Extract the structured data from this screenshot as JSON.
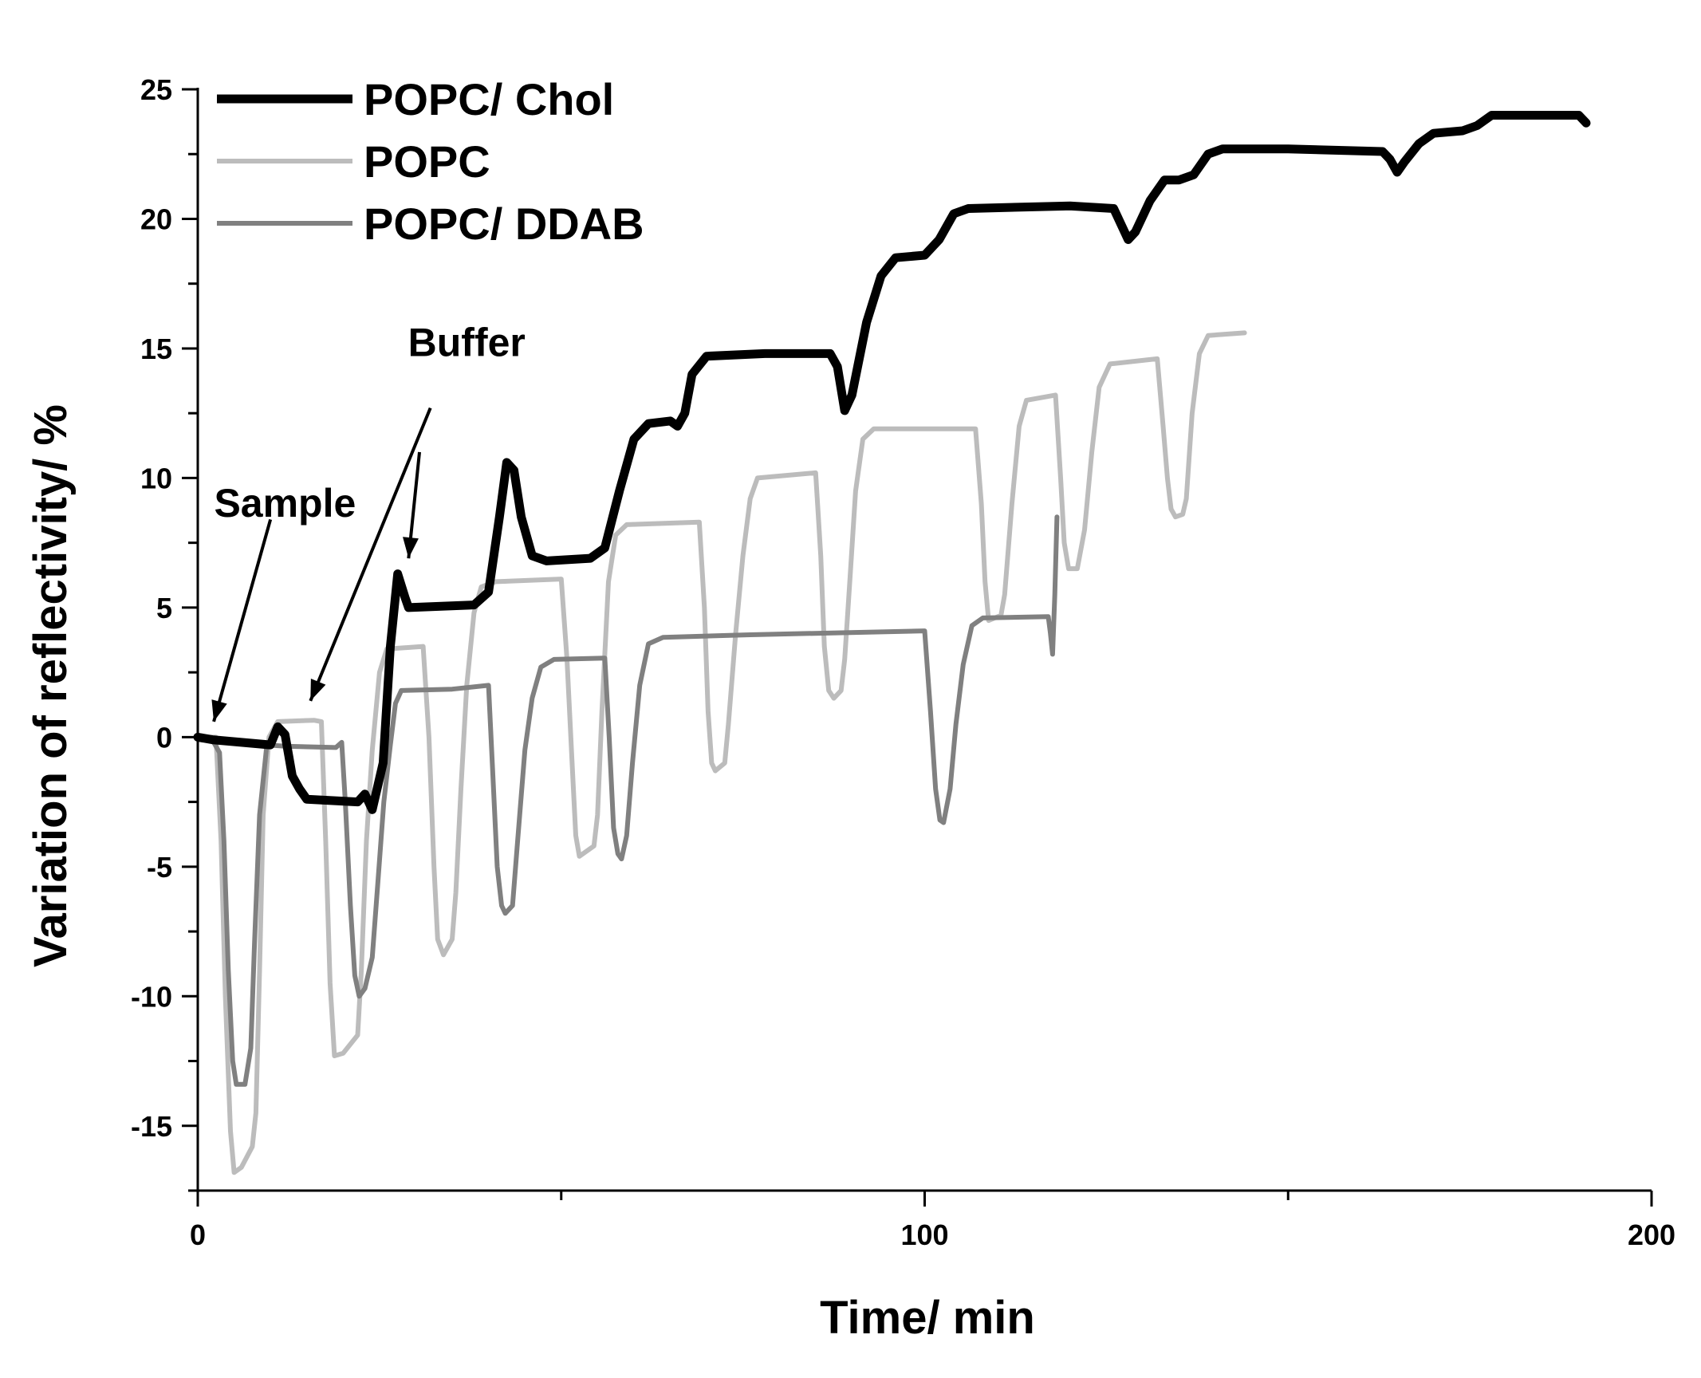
{
  "chart_data": {
    "type": "line",
    "title": "",
    "xlabel": "Time/ min",
    "ylabel": "Variation of reflectivity/ %",
    "xlim": [
      0,
      200
    ],
    "ylim": [
      -17.5,
      25
    ],
    "x_ticks": [
      0,
      100,
      200
    ],
    "x_tick_labels": [
      "0",
      "100",
      "200"
    ],
    "x_minor_step": 50,
    "y_ticks": [
      -15,
      -10,
      -5,
      0,
      5,
      10,
      15,
      20,
      25
    ],
    "y_tick_labels": [
      "-15",
      "-10",
      "-5",
      "0",
      "5",
      "10",
      "15",
      "20",
      "25"
    ],
    "y_minor_step": 2.5,
    "grid": false,
    "legend_position": "top-left",
    "series": [
      {
        "name": "POPC/ Chol",
        "color": "#000000",
        "weight": "thick",
        "points": [
          [
            0,
            0
          ],
          [
            2,
            -0.1
          ],
          [
            10,
            -0.3
          ],
          [
            11,
            0.4
          ],
          [
            12,
            0.1
          ],
          [
            13,
            -1.5
          ],
          [
            14,
            -2
          ],
          [
            15,
            -2.4
          ],
          [
            22,
            -2.5
          ],
          [
            23,
            -2.2
          ],
          [
            24,
            -2.8
          ],
          [
            25.5,
            -1
          ],
          [
            26.5,
            3.5
          ],
          [
            27.5,
            6.3
          ],
          [
            28.5,
            5.4
          ],
          [
            29,
            5
          ],
          [
            38,
            5.1
          ],
          [
            40,
            5.6
          ],
          [
            41.5,
            8.5
          ],
          [
            42.5,
            10.6
          ],
          [
            43.5,
            10.3
          ],
          [
            44.5,
            8.5
          ],
          [
            46,
            7
          ],
          [
            48,
            6.8
          ],
          [
            54,
            6.9
          ],
          [
            56,
            7.3
          ],
          [
            58,
            9.5
          ],
          [
            60,
            11.5
          ],
          [
            62,
            12.1
          ],
          [
            65,
            12.2
          ],
          [
            66,
            12
          ],
          [
            67,
            12.5
          ],
          [
            68,
            14
          ],
          [
            70,
            14.7
          ],
          [
            78,
            14.8
          ],
          [
            87,
            14.8
          ],
          [
            88,
            14.3
          ],
          [
            89,
            12.6
          ],
          [
            90,
            13.2
          ],
          [
            92,
            16
          ],
          [
            94,
            17.8
          ],
          [
            96,
            18.5
          ],
          [
            100,
            18.6
          ],
          [
            102,
            19.2
          ],
          [
            104,
            20.2
          ],
          [
            106,
            20.4
          ],
          [
            120,
            20.5
          ],
          [
            126,
            20.4
          ],
          [
            127,
            19.8
          ],
          [
            128,
            19.2
          ],
          [
            129,
            19.5
          ],
          [
            131,
            20.7
          ],
          [
            133,
            21.5
          ],
          [
            135,
            21.5
          ],
          [
            137,
            21.7
          ],
          [
            139,
            22.5
          ],
          [
            141,
            22.7
          ],
          [
            150,
            22.7
          ],
          [
            163,
            22.6
          ],
          [
            164,
            22.3
          ],
          [
            165,
            21.8
          ],
          [
            166,
            22.2
          ],
          [
            168,
            22.9
          ],
          [
            170,
            23.3
          ],
          [
            174,
            23.4
          ],
          [
            176,
            23.6
          ],
          [
            178,
            24
          ],
          [
            190,
            24
          ],
          [
            191,
            23.7
          ]
        ]
      },
      {
        "name": "POPC",
        "color": "#bcbcbc",
        "weight": "medium",
        "points": [
          [
            0,
            0
          ],
          [
            2.5,
            0
          ],
          [
            3.2,
            -4
          ],
          [
            3.8,
            -10
          ],
          [
            4.5,
            -15.2
          ],
          [
            5,
            -16.8
          ],
          [
            6,
            -16.6
          ],
          [
            7.5,
            -15.8
          ],
          [
            8,
            -14.5
          ],
          [
            8.5,
            -9
          ],
          [
            9,
            -3
          ],
          [
            9.8,
            0
          ],
          [
            11,
            0.6
          ],
          [
            16,
            0.65
          ],
          [
            17,
            0.6
          ],
          [
            17.6,
            -4
          ],
          [
            18.2,
            -9.5
          ],
          [
            18.8,
            -12.3
          ],
          [
            20,
            -12.2
          ],
          [
            22,
            -11.5
          ],
          [
            22.5,
            -9
          ],
          [
            23.2,
            -4
          ],
          [
            24,
            -0.5
          ],
          [
            25,
            2.5
          ],
          [
            26,
            3.4
          ],
          [
            31,
            3.5
          ],
          [
            31.8,
            0
          ],
          [
            32.5,
            -5
          ],
          [
            33,
            -7.8
          ],
          [
            33.8,
            -8.4
          ],
          [
            35,
            -7.8
          ],
          [
            35.5,
            -6
          ],
          [
            36.2,
            -2
          ],
          [
            37,
            2
          ],
          [
            38,
            4.8
          ],
          [
            39,
            5.8
          ],
          [
            41,
            6
          ],
          [
            50,
            6.1
          ],
          [
            50.8,
            3
          ],
          [
            51.5,
            -1
          ],
          [
            52,
            -3.8
          ],
          [
            52.5,
            -4.6
          ],
          [
            54.5,
            -4.2
          ],
          [
            55,
            -3
          ],
          [
            55.6,
            1
          ],
          [
            56.5,
            6
          ],
          [
            57.5,
            7.8
          ],
          [
            59,
            8.2
          ],
          [
            69,
            8.3
          ],
          [
            69.7,
            5
          ],
          [
            70.2,
            1
          ],
          [
            70.7,
            -1
          ],
          [
            71.2,
            -1.3
          ],
          [
            72.5,
            -1
          ],
          [
            73,
            0.5
          ],
          [
            74,
            4
          ],
          [
            75,
            7
          ],
          [
            76,
            9.2
          ],
          [
            77,
            10
          ],
          [
            85,
            10.2
          ],
          [
            85.7,
            7
          ],
          [
            86.2,
            3.5
          ],
          [
            86.8,
            1.8
          ],
          [
            87.5,
            1.5
          ],
          [
            88.5,
            1.8
          ],
          [
            89,
            3
          ],
          [
            89.7,
            6
          ],
          [
            90.5,
            9.5
          ],
          [
            91.5,
            11.5
          ],
          [
            93,
            11.9
          ],
          [
            107,
            11.9
          ],
          [
            107.8,
            9
          ],
          [
            108.3,
            6
          ],
          [
            108.8,
            4.5
          ],
          [
            110.5,
            4.7
          ],
          [
            111,
            5.5
          ],
          [
            112,
            9
          ],
          [
            113,
            12
          ],
          [
            114,
            13
          ],
          [
            118,
            13.2
          ],
          [
            118.7,
            10
          ],
          [
            119.2,
            7.5
          ],
          [
            119.8,
            6.5
          ],
          [
            121,
            6.5
          ],
          [
            122,
            8
          ],
          [
            123,
            11
          ],
          [
            124,
            13.5
          ],
          [
            125.5,
            14.4
          ],
          [
            132,
            14.6
          ],
          [
            132.8,
            12
          ],
          [
            133.4,
            10
          ],
          [
            133.9,
            8.8
          ],
          [
            134.5,
            8.5
          ],
          [
            135.5,
            8.6
          ],
          [
            136,
            9.2
          ],
          [
            136.8,
            12.5
          ],
          [
            137.8,
            14.8
          ],
          [
            139,
            15.5
          ],
          [
            144,
            15.6
          ]
        ]
      },
      {
        "name": "POPC/ DDAB",
        "color": "#808080",
        "weight": "medium",
        "points": [
          [
            0,
            0
          ],
          [
            2,
            -0.1
          ],
          [
            3,
            -0.6
          ],
          [
            3.6,
            -4
          ],
          [
            4.2,
            -9
          ],
          [
            4.8,
            -12.5
          ],
          [
            5.3,
            -13.4
          ],
          [
            6.5,
            -13.4
          ],
          [
            7.3,
            -12
          ],
          [
            7.8,
            -8
          ],
          [
            8.5,
            -3
          ],
          [
            9.5,
            -0.3
          ],
          [
            12,
            -0.35
          ],
          [
            19,
            -0.4
          ],
          [
            19.8,
            -0.2
          ],
          [
            20.3,
            -2.5
          ],
          [
            21,
            -6.5
          ],
          [
            21.6,
            -9.2
          ],
          [
            22.2,
            -10
          ],
          [
            23,
            -9.7
          ],
          [
            24,
            -8.5
          ],
          [
            24.8,
            -5.5
          ],
          [
            25.6,
            -2.5
          ],
          [
            26.5,
            -0.3
          ],
          [
            27.2,
            1.3
          ],
          [
            28,
            1.8
          ],
          [
            35,
            1.85
          ],
          [
            40,
            2
          ],
          [
            40.6,
            -1.5
          ],
          [
            41.2,
            -5
          ],
          [
            41.8,
            -6.5
          ],
          [
            42.3,
            -6.8
          ],
          [
            43.3,
            -6.5
          ],
          [
            44,
            -4
          ],
          [
            45,
            -0.5
          ],
          [
            46,
            1.5
          ],
          [
            47.2,
            2.7
          ],
          [
            49,
            3
          ],
          [
            56,
            3.05
          ],
          [
            56.6,
            0
          ],
          [
            57.2,
            -3.5
          ],
          [
            57.8,
            -4.5
          ],
          [
            58.3,
            -4.7
          ],
          [
            59,
            -3.8
          ],
          [
            59.8,
            -1
          ],
          [
            60.8,
            2
          ],
          [
            62,
            3.6
          ],
          [
            64,
            3.85
          ],
          [
            76,
            3.95
          ],
          [
            100,
            4.1
          ],
          [
            100.8,
            1
          ],
          [
            101.5,
            -2
          ],
          [
            102.1,
            -3.2
          ],
          [
            102.6,
            -3.3
          ],
          [
            103.5,
            -2
          ],
          [
            104.3,
            0.5
          ],
          [
            105.3,
            2.8
          ],
          [
            106.5,
            4.3
          ],
          [
            108,
            4.6
          ],
          [
            117,
            4.65
          ],
          [
            117.3,
            4
          ],
          [
            117.6,
            3.2
          ],
          [
            117.9,
            5.5
          ],
          [
            118.2,
            8.5
          ]
        ]
      }
    ],
    "annotations": [
      {
        "text": "Sample",
        "label_pos": [
          12,
          8.5
        ],
        "arrow_from": [
          10,
          8.4
        ],
        "arrow_to": [
          2.2,
          0.6
        ]
      },
      {
        "text": "Buffer",
        "label_pos": [
          37,
          14.7
        ],
        "arrow_from": [
          32,
          12.7
        ],
        "arrow_to": [
          15.5,
          1.4
        ]
      },
      {
        "text": "",
        "label_pos": null,
        "arrow_from": [
          30.5,
          11
        ],
        "arrow_to": [
          29,
          6.9
        ]
      }
    ]
  }
}
